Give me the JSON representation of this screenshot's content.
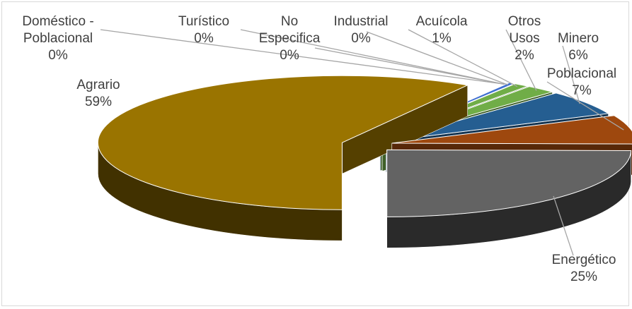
{
  "chart_data": {
    "type": "pie",
    "title": "",
    "style": "3d-exploded",
    "legend": "none",
    "slices": [
      {
        "label_lines": [
          "Agrario"
        ],
        "percent_label": "59%",
        "value": 59,
        "color": "#9a7400"
      },
      {
        "label_lines": [
          "Doméstico -",
          "Poblacional"
        ],
        "percent_label": "0%",
        "value": 0.1,
        "color": "#4472c4"
      },
      {
        "label_lines": [
          "Turístico"
        ],
        "percent_label": "0%",
        "value": 0.1,
        "color": "#4472c4"
      },
      {
        "label_lines": [
          "No",
          "Especifica"
        ],
        "percent_label": "0%",
        "value": 0.1,
        "color": "#4472c4"
      },
      {
        "label_lines": [
          "Industrial"
        ],
        "percent_label": "0%",
        "value": 0.4,
        "color": "#3f6fd0"
      },
      {
        "label_lines": [
          "Acuícola"
        ],
        "percent_label": "1%",
        "value": 1,
        "color": "#70ad47"
      },
      {
        "label_lines": [
          "Otros",
          "Usos"
        ],
        "percent_label": "2%",
        "value": 2,
        "color": "#70ad47"
      },
      {
        "label_lines": [
          "Minero"
        ],
        "percent_label": "6%",
        "value": 6,
        "color": "#255e91"
      },
      {
        "label_lines": [
          "Poblacional"
        ],
        "percent_label": "7%",
        "value": 7,
        "color": "#9e480e"
      },
      {
        "label_lines": [
          "Energético"
        ],
        "percent_label": "25%",
        "value": 25,
        "color": "#636363"
      }
    ]
  }
}
